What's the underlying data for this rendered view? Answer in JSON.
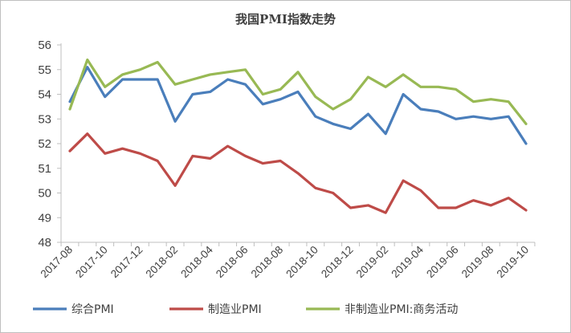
{
  "chart_data": {
    "type": "line",
    "title": "我国PMI指数走势",
    "xlabel": "",
    "ylabel": "",
    "ylim": [
      48,
      56
    ],
    "yticks": [
      48,
      49,
      50,
      51,
      52,
      53,
      54,
      55,
      56
    ],
    "grid": false,
    "legend_position": "bottom",
    "x": [
      "2017-08",
      "2017-09",
      "2017-10",
      "2017-11",
      "2017-12",
      "2018-01",
      "2018-02",
      "2018-03",
      "2018-04",
      "2018-05",
      "2018-06",
      "2018-07",
      "2018-08",
      "2018-09",
      "2018-10",
      "2018-11",
      "2018-12",
      "2019-01",
      "2019-02",
      "2019-03",
      "2019-04",
      "2019-05",
      "2019-06",
      "2019-07",
      "2019-08",
      "2019-09",
      "2019-10"
    ],
    "xtick_labels": [
      "2017-08",
      "2017-10",
      "2017-12",
      "2018-02",
      "2018-04",
      "2018-06",
      "2018-08",
      "2018-10",
      "2018-12",
      "2019-02",
      "2019-04",
      "2019-06",
      "2019-08",
      "2019-10"
    ],
    "series": [
      {
        "name": "综合PMI",
        "color": "#4a7ebb",
        "values": [
          53.7,
          55.1,
          53.9,
          54.6,
          54.6,
          54.6,
          52.9,
          54.0,
          54.1,
          54.6,
          54.4,
          53.6,
          53.8,
          54.1,
          53.1,
          52.8,
          52.6,
          53.2,
          52.4,
          54.0,
          53.4,
          53.3,
          53.0,
          53.1,
          53.0,
          53.1,
          52.0
        ]
      },
      {
        "name": "制造业PMI",
        "color": "#be4b48",
        "values": [
          51.7,
          52.4,
          51.6,
          51.8,
          51.6,
          51.3,
          50.3,
          51.5,
          51.4,
          51.9,
          51.5,
          51.2,
          51.3,
          50.8,
          50.2,
          50.0,
          49.4,
          49.5,
          49.2,
          50.5,
          50.1,
          49.4,
          49.4,
          49.7,
          49.5,
          49.8,
          49.3
        ]
      },
      {
        "name": "非制造业PMI:商务活动",
        "color": "#98b954",
        "values": [
          53.4,
          55.4,
          54.3,
          54.8,
          55.0,
          55.3,
          54.4,
          54.6,
          54.8,
          54.9,
          55.0,
          54.0,
          54.2,
          54.9,
          53.9,
          53.4,
          53.8,
          54.7,
          54.3,
          54.8,
          54.3,
          54.3,
          54.2,
          53.7,
          53.8,
          53.7,
          52.8
        ]
      }
    ]
  }
}
